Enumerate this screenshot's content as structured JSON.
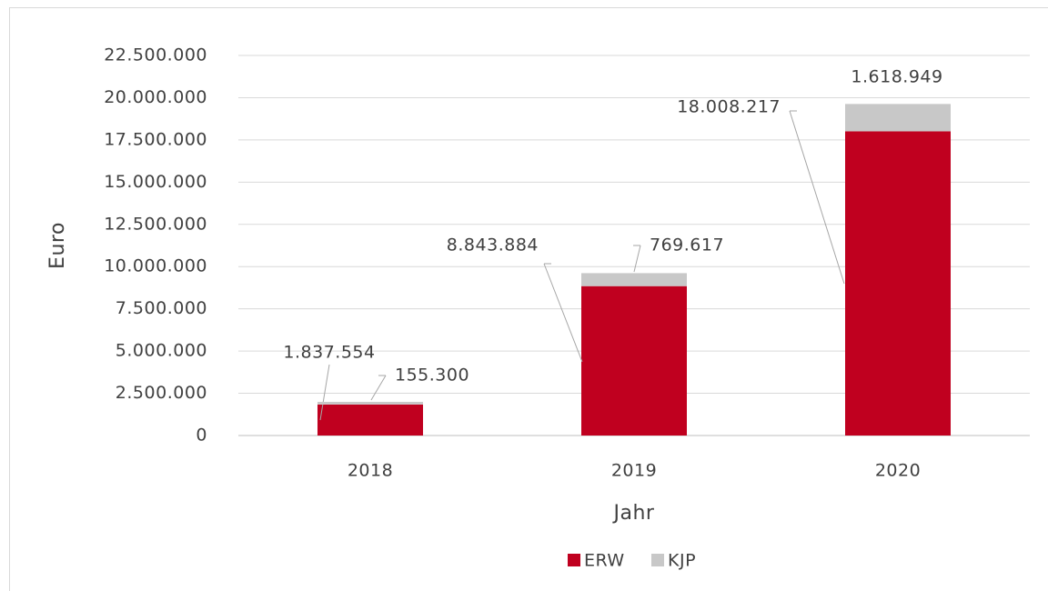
{
  "chart_data": {
    "type": "stacked_bar",
    "x_label": "Jahr",
    "y_label": "Euro",
    "categories": [
      "2018",
      "2019",
      "2020"
    ],
    "series": [
      {
        "name": "ERW",
        "color": "#c0001f",
        "values": [
          1837554,
          8843884,
          18008217
        ],
        "value_labels": [
          "1.837.554",
          "8.843.884",
          "18.008.217"
        ]
      },
      {
        "name": "KJP",
        "color": "#c8c8c8",
        "values": [
          155300,
          769617,
          1618949
        ],
        "value_labels": [
          "155.300",
          "769.617",
          "1.618.949"
        ]
      }
    ],
    "ylim": [
      0,
      22500000
    ],
    "yticks": [
      0,
      {
        "value": 2500000,
        "label": "2.500.000"
      },
      {
        "value": 5000000,
        "label": "5.000.000"
      },
      {
        "value": 7500000,
        "label": "7.500.000"
      },
      {
        "value": 10000000,
        "label": "10.000.000"
      },
      {
        "value": 12500000,
        "label": "12.500.000"
      },
      {
        "value": 15000000,
        "label": "15.000.000"
      },
      {
        "value": 17500000,
        "label": "17.500.000"
      },
      {
        "value": 20000000,
        "label": "20.000.000"
      },
      {
        "value": 22500000,
        "label": "22.500.000"
      }
    ],
    "grid": true,
    "legend": "bottom"
  }
}
